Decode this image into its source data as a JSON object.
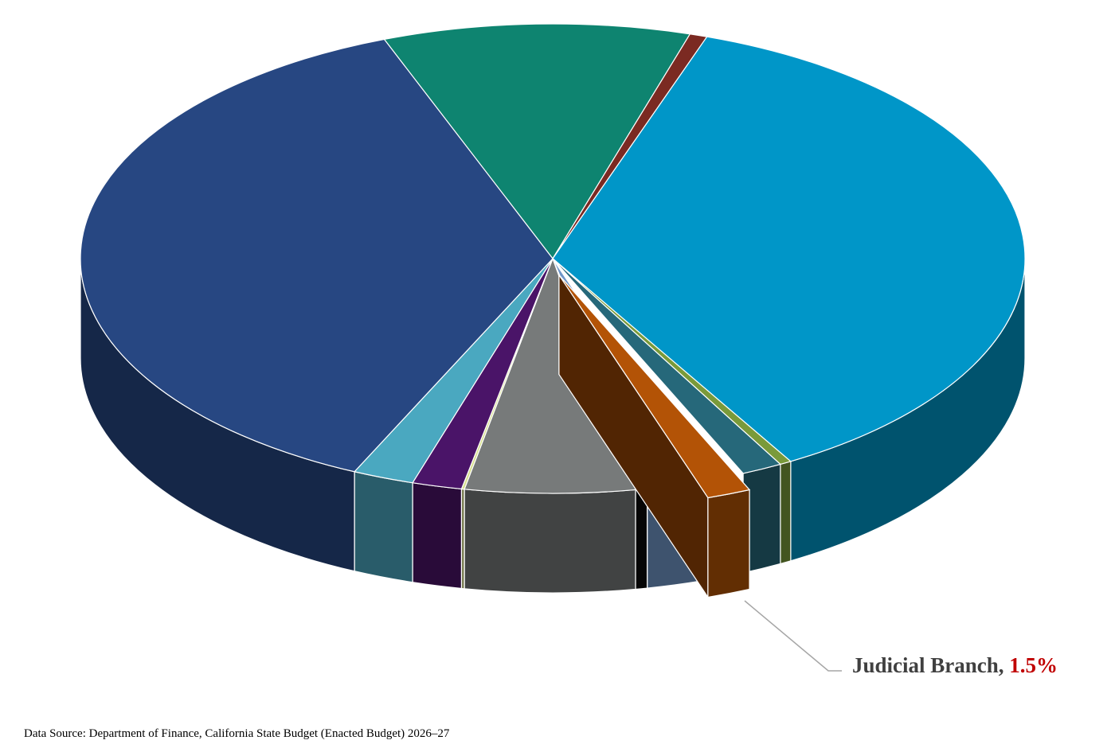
{
  "chart_data": {
    "type": "pie3d",
    "categories": [
      null,
      null,
      null,
      null,
      null,
      "Judicial Branch,",
      null,
      null,
      null,
      null,
      null,
      null,
      null
    ],
    "values": [
      10.5,
      0.6,
      36.3,
      0.4,
      1.4,
      1.5,
      1.9,
      0.4,
      5.8,
      0.1,
      1.7,
      2.1,
      37.3
    ],
    "value_labels": [
      null,
      null,
      null,
      null,
      null,
      "1.5%",
      null,
      null,
      null,
      null,
      null,
      null,
      null
    ],
    "colors": [
      "#0e8470",
      "#7b2a22",
      "#0096c8",
      "#7a9a3a",
      "#26687a",
      "#b35306",
      "#7096c8",
      "#0a0a0a",
      "#777a7a",
      "#d8e090",
      "#4a1468",
      "#4aa8c0",
      "#274782"
    ],
    "exploded": [
      5
    ],
    "source": "Data Source: Department of Finance, California State Budget (Enacted Budget) 2026–27"
  }
}
